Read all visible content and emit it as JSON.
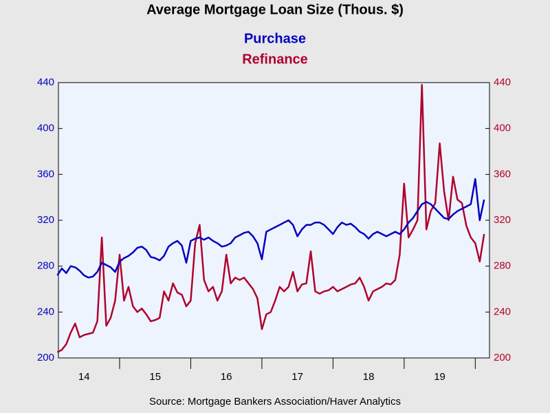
{
  "chart_data": {
    "type": "line",
    "title": "Average Mortgage Loan Size (Thous. $)",
    "source": "Source:  Mortgage Bankers Association/Haver Analytics",
    "x": [
      2014.125,
      2014.1875,
      2014.25,
      2014.3125,
      2014.375,
      2014.4375,
      2014.5,
      2014.5625,
      2014.625,
      2014.6875,
      2014.75,
      2014.8125,
      2014.875,
      2014.9375,
      2015,
      2015.0625,
      2015.125,
      2015.1875,
      2015.25,
      2015.3125,
      2015.375,
      2015.4375,
      2015.5,
      2015.5625,
      2015.625,
      2015.6875,
      2015.75,
      2015.8125,
      2015.875,
      2015.9375,
      2016,
      2016.0625,
      2016.125,
      2016.1875,
      2016.25,
      2016.3125,
      2016.375,
      2016.4375,
      2016.5,
      2016.5625,
      2016.625,
      2016.6875,
      2016.75,
      2016.8125,
      2016.875,
      2016.9375,
      2017,
      2017.0625,
      2017.125,
      2017.1875,
      2017.25,
      2017.3125,
      2017.375,
      2017.4375,
      2017.5,
      2017.5625,
      2017.625,
      2017.6875,
      2017.75,
      2017.8125,
      2017.875,
      2017.9375,
      2018,
      2018.0625,
      2018.125,
      2018.1875,
      2018.25,
      2018.3125,
      2018.375,
      2018.4375,
      2018.5,
      2018.5625,
      2018.625,
      2018.6875,
      2018.75,
      2018.8125,
      2018.875,
      2018.9375,
      2019,
      2019.0625,
      2019.125,
      2019.1875,
      2019.25,
      2019.3125,
      2019.375,
      2019.4375,
      2019.5,
      2019.5625,
      2019.625,
      2019.6875,
      2019.75,
      2019.8125,
      2019.875,
      2019.9375,
      2020,
      2020.0625,
      2020.125
    ],
    "series": [
      {
        "name": "Purchase",
        "color": "#0000c0",
        "axis": "y",
        "values": [
          272,
          278,
          274,
          280,
          279,
          276,
          272,
          270,
          271,
          275,
          283,
          281,
          279,
          275,
          284,
          287,
          289,
          292,
          296,
          297,
          294,
          288,
          287,
          285,
          289,
          297,
          300,
          302,
          298,
          283,
          302,
          304,
          305,
          303,
          305,
          302,
          300,
          297,
          298,
          300,
          305,
          307,
          309,
          310,
          306,
          300,
          286,
          310,
          312,
          314,
          316,
          318,
          320,
          316,
          306,
          312,
          316,
          316,
          318,
          318,
          316,
          312,
          308,
          314,
          318,
          316,
          317,
          314,
          310,
          308,
          304,
          308,
          310,
          308,
          306,
          308,
          310,
          308,
          312,
          318,
          322,
          328,
          334,
          336,
          334,
          330,
          326,
          322,
          321,
          325,
          328,
          330,
          332,
          334,
          356,
          320,
          338
        ]
      },
      {
        "name": "Refinance",
        "color": "#b0002c",
        "axis": "y2",
        "values": [
          205,
          207,
          212,
          222,
          230,
          218,
          220,
          221,
          222,
          232,
          305,
          228,
          235,
          250,
          290,
          250,
          262,
          245,
          240,
          243,
          238,
          232,
          233,
          235,
          258,
          250,
          265,
          257,
          255,
          245,
          250,
          300,
          316,
          268,
          258,
          262,
          250,
          258,
          290,
          265,
          270,
          268,
          270,
          265,
          260,
          252,
          225,
          238,
          240,
          250,
          262,
          258,
          262,
          275,
          258,
          264,
          265,
          293,
          258,
          256,
          258,
          259,
          262,
          258,
          260,
          262,
          264,
          265,
          270,
          262,
          250,
          258,
          260,
          262,
          265,
          264,
          268,
          290,
          352,
          305,
          312,
          320,
          438,
          312,
          328,
          335,
          387,
          345,
          320,
          358,
          338,
          335,
          315,
          305,
          300,
          284,
          308
        ]
      }
    ],
    "xlim": [
      2014.14,
      2020.2
    ],
    "xticks": [
      {
        "value": 2014.5,
        "label": "14"
      },
      {
        "value": 2015.5,
        "label": "15"
      },
      {
        "value": 2016.5,
        "label": "16"
      },
      {
        "value": 2017.5,
        "label": "17"
      },
      {
        "value": 2018.5,
        "label": "18"
      },
      {
        "value": 2019.5,
        "label": "19"
      }
    ],
    "x_minor_ticks": [
      2015,
      2016,
      2017,
      2018,
      2019,
      2020
    ],
    "ylim": [
      200,
      440
    ],
    "yticks": [
      200,
      240,
      280,
      320,
      360,
      400,
      440
    ],
    "y2lim": [
      200,
      440
    ],
    "y2ticks": [
      200,
      240,
      280,
      320,
      360,
      400,
      440
    ],
    "grid": false
  }
}
